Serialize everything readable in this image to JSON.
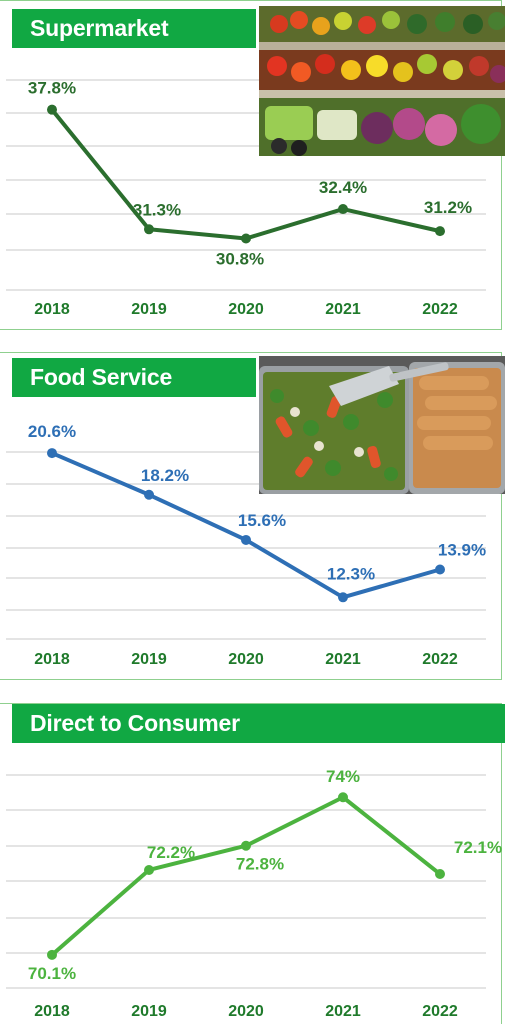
{
  "chart_data": [
    {
      "type": "line",
      "title": "Supermarket",
      "x": [
        "2018",
        "2019",
        "2020",
        "2021",
        "2022"
      ],
      "values": [
        37.8,
        31.3,
        30.8,
        32.4,
        31.2
      ],
      "labels": [
        "37.8%",
        "31.3%",
        "30.8%",
        "32.4%",
        "31.2%"
      ],
      "color": "#2b6e2e",
      "ylim": [
        28.0,
        40.5
      ],
      "grid": true,
      "image": "produce-aisle-photo"
    },
    {
      "type": "line",
      "title": "Food Service",
      "x": [
        "2018",
        "2019",
        "2020",
        "2021",
        "2022"
      ],
      "values": [
        20.6,
        18.2,
        15.6,
        12.3,
        13.9
      ],
      "labels": [
        "20.6%",
        "18.2%",
        "15.6%",
        "12.3%",
        "13.9%"
      ],
      "color": "#2e6fb5",
      "ylim": [
        9.9,
        22.1
      ],
      "grid": true,
      "image": "buffet-trays-photo"
    },
    {
      "type": "line",
      "title": "Direct to Consumer",
      "x": [
        "2018",
        "2019",
        "2020",
        "2021",
        "2022"
      ],
      "values": [
        70.1,
        72.2,
        72.8,
        74.0,
        72.1
      ],
      "labels": [
        "70.1%",
        "72.2%",
        "72.8%",
        "74%",
        "72.1%"
      ],
      "color": "#4cb33f",
      "ylim": [
        69.7,
        74.6
      ],
      "grid": true
    }
  ],
  "colors": {
    "banner": "#11a843",
    "frame": "#8fd08f",
    "year": "#1f7a2b"
  }
}
